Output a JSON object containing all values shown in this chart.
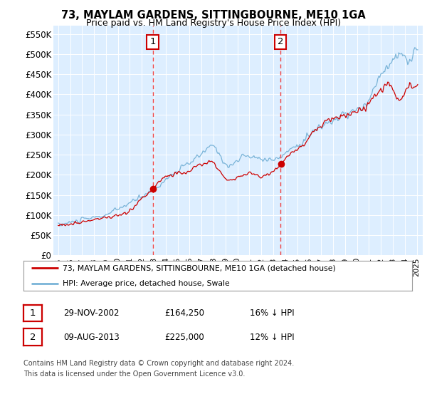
{
  "title": "73, MAYLAM GARDENS, SITTINGBOURNE, ME10 1GA",
  "subtitle": "Price paid vs. HM Land Registry's House Price Index (HPI)",
  "ylim": [
    0,
    570000
  ],
  "yticks": [
    0,
    50000,
    100000,
    150000,
    200000,
    250000,
    300000,
    350000,
    400000,
    450000,
    500000,
    550000
  ],
  "ytick_labels": [
    "£0",
    "£50K",
    "£100K",
    "£150K",
    "£200K",
    "£250K",
    "£300K",
    "£350K",
    "£400K",
    "£450K",
    "£500K",
    "£550K"
  ],
  "hpi_color": "#7ab4d8",
  "price_color": "#cc0000",
  "vline_color": "#ee4444",
  "annotation_box_edgecolor": "#cc0000",
  "bg_color": "#ddeeff",
  "purchase1_date": 2002.91,
  "purchase1_price": 164250,
  "purchase2_date": 2013.6,
  "purchase2_price": 225000,
  "legend1": "73, MAYLAM GARDENS, SITTINGBOURNE, ME10 1GA (detached house)",
  "legend2": "HPI: Average price, detached house, Swale",
  "table_row1_col1": "29-NOV-2002",
  "table_row1_col2": "£164,250",
  "table_row1_col3": "16% ↓ HPI",
  "table_row2_col1": "09-AUG-2013",
  "table_row2_col2": "£225,000",
  "table_row2_col3": "12% ↓ HPI",
  "footnote_line1": "Contains HM Land Registry data © Crown copyright and database right 2024.",
  "footnote_line2": "This data is licensed under the Open Government Licence v3.0.",
  "xmin": 1994.6,
  "xmax": 2025.5
}
